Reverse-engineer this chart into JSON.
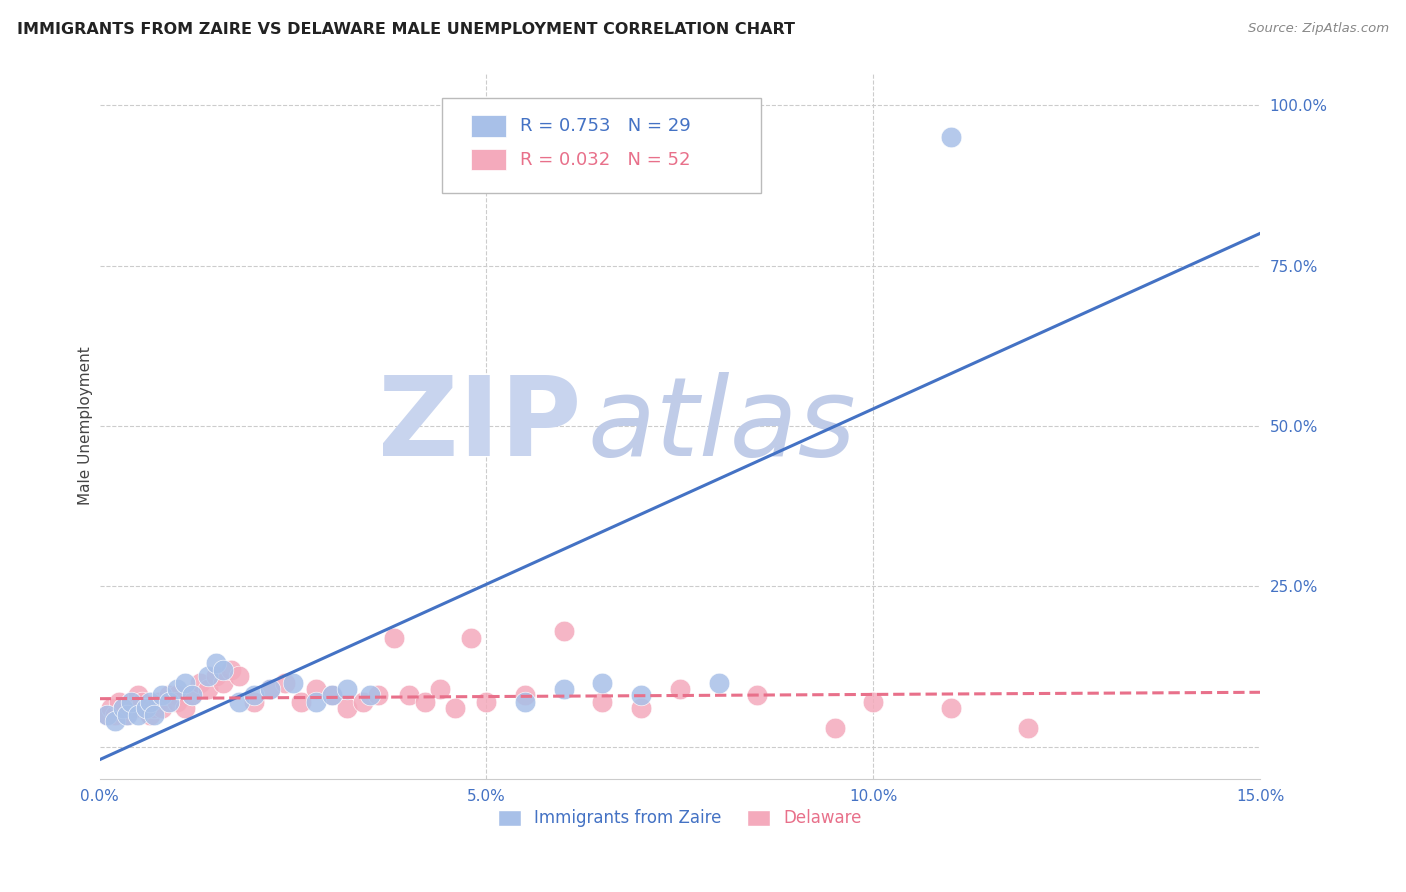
{
  "title": "IMMIGRANTS FROM ZAIRE VS DELAWARE MALE UNEMPLOYMENT CORRELATION CHART",
  "source": "Source: ZipAtlas.com",
  "ylabel": "Male Unemployment",
  "legend_label_blue": "Immigrants from Zaire",
  "legend_label_pink": "Delaware",
  "blue_color": "#A8C0E8",
  "pink_color": "#F4AABC",
  "blue_line_color": "#4472C4",
  "pink_line_color": "#E8708A",
  "watermark_zip": "ZIP",
  "watermark_atlas": "atlas",
  "watermark_color_zip": "#C8D4EE",
  "watermark_color_atlas": "#C0CCE8",
  "background_color": "#FFFFFF",
  "grid_color": "#CCCCCC",
  "blue_scatter_x": [
    0.1,
    0.2,
    0.3,
    0.35,
    0.4,
    0.5,
    0.6,
    0.65,
    0.7,
    0.8,
    0.9,
    1.0,
    1.1,
    1.2,
    1.4,
    1.5,
    1.6,
    1.8,
    2.0,
    2.2,
    2.5,
    2.8,
    3.0,
    3.2,
    3.5,
    5.5,
    6.0,
    6.5,
    7.0,
    8.0,
    11.0
  ],
  "blue_scatter_y": [
    5,
    4,
    6,
    5,
    7,
    5,
    6,
    7,
    5,
    8,
    7,
    9,
    10,
    8,
    11,
    13,
    12,
    7,
    8,
    9,
    10,
    7,
    8,
    9,
    8,
    7,
    9,
    10,
    8,
    10,
    95
  ],
  "pink_scatter_x": [
    0.1,
    0.15,
    0.2,
    0.25,
    0.3,
    0.35,
    0.4,
    0.45,
    0.5,
    0.55,
    0.6,
    0.65,
    0.7,
    0.75,
    0.8,
    0.9,
    1.0,
    1.0,
    1.1,
    1.2,
    1.3,
    1.4,
    1.5,
    1.6,
    1.7,
    1.8,
    2.0,
    2.2,
    2.4,
    2.6,
    2.8,
    3.0,
    3.2,
    3.4,
    3.6,
    3.8,
    4.0,
    4.2,
    4.4,
    4.6,
    4.8,
    5.0,
    5.5,
    6.0,
    6.5,
    7.0,
    7.5,
    8.5,
    9.5,
    10.0,
    11.0,
    12.0
  ],
  "pink_scatter_y": [
    5,
    6,
    5,
    7,
    6,
    5,
    7,
    6,
    8,
    7,
    6,
    5,
    6,
    7,
    6,
    8,
    8,
    7,
    6,
    8,
    10,
    9,
    11,
    10,
    12,
    11,
    7,
    9,
    10,
    7,
    9,
    8,
    6,
    7,
    8,
    17,
    8,
    7,
    9,
    6,
    17,
    7,
    8,
    18,
    7,
    6,
    9,
    8,
    3,
    7,
    6,
    3
  ],
  "blue_line_x0": 0.0,
  "blue_line_y0": -2.0,
  "blue_line_x1": 15.0,
  "blue_line_y1": 80.0,
  "pink_line_x0": 0.0,
  "pink_line_y0": 7.5,
  "pink_line_x1": 15.0,
  "pink_line_y1": 8.5,
  "xlim": [
    0.0,
    15.0
  ],
  "ylim": [
    -5.0,
    105.0
  ],
  "xticks": [
    0.0,
    5.0,
    10.0,
    15.0
  ],
  "xtick_labels": [
    "0.0%",
    "5.0%",
    "10.0%",
    "15.0%"
  ],
  "yticks": [
    0.0,
    25.0,
    50.0,
    75.0,
    100.0
  ],
  "ytick_labels": [
    "",
    "25.0%",
    "50.0%",
    "75.0%",
    "100.0%"
  ]
}
